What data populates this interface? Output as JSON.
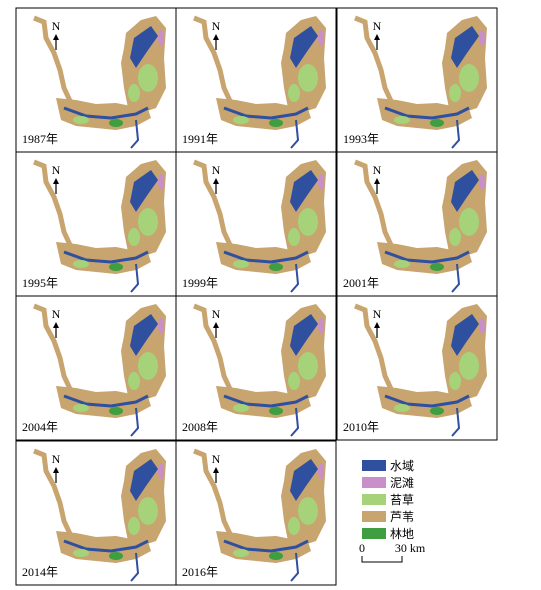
{
  "panels": [
    {
      "label": "1987年"
    },
    {
      "label": "1991年"
    },
    {
      "label": "1993年"
    },
    {
      "label": "1995年"
    },
    {
      "label": "1999年"
    },
    {
      "label": "2001年"
    },
    {
      "label": "2004年"
    },
    {
      "label": "2008年"
    },
    {
      "label": "2010年"
    },
    {
      "label": "2014年"
    },
    {
      "label": "2016年"
    }
  ],
  "north_label": "N",
  "legend": {
    "items": [
      {
        "name": "水域",
        "color": "#2f4f9f"
      },
      {
        "name": "泥滩",
        "color": "#c98fc8"
      },
      {
        "name": "苔草",
        "color": "#a6d27a"
      },
      {
        "name": "芦苇",
        "color": "#c8a46e"
      },
      {
        "name": "林地",
        "color": "#3f9e3f"
      }
    ]
  },
  "scale_bar": {
    "start": "0",
    "end": "30 km"
  }
}
